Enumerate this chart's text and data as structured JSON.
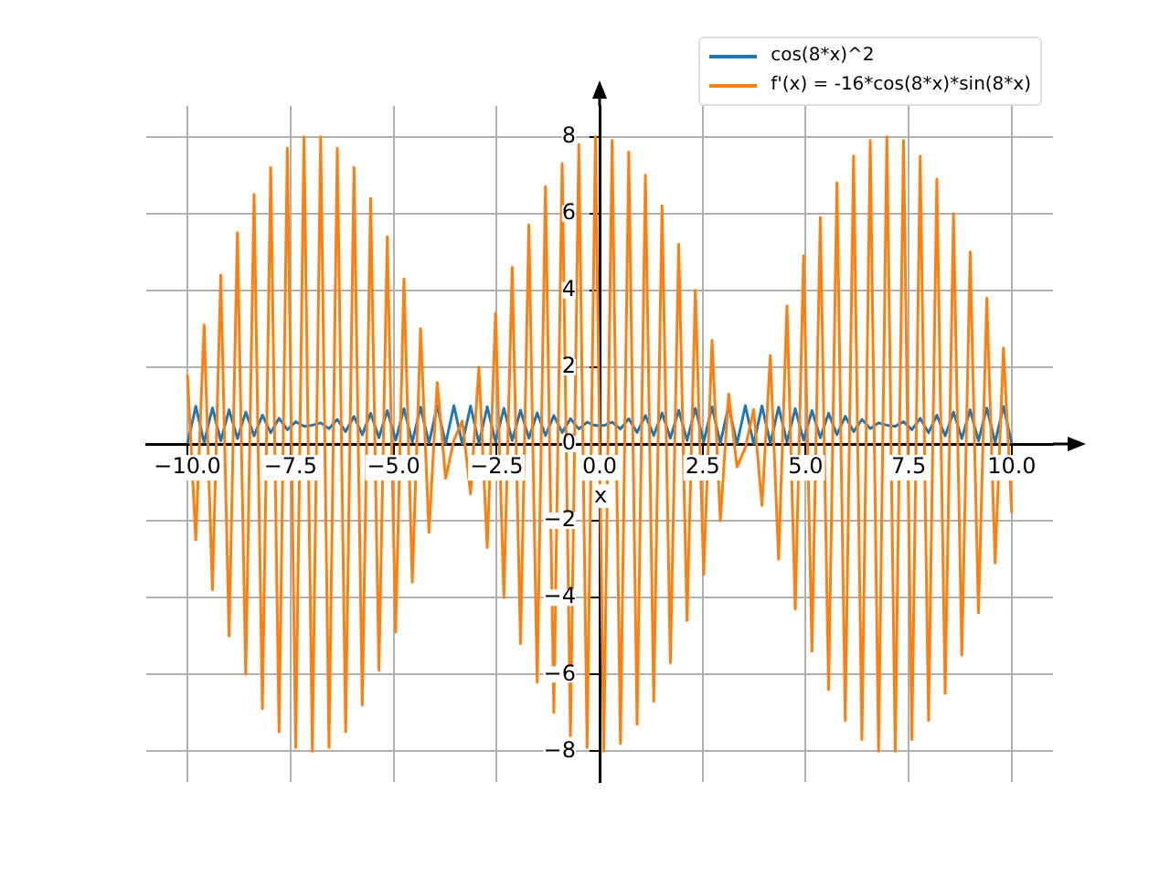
{
  "chart_data": {
    "type": "line",
    "xlabel": "x",
    "x": [
      -10,
      -9.798,
      -9.596,
      -9.394,
      -9.192,
      -8.99,
      -8.788,
      -8.586,
      -8.384,
      -8.182,
      -7.98,
      -7.778,
      -7.576,
      -7.374,
      -7.172,
      -6.97,
      -6.768,
      -6.566,
      -6.364,
      -6.162,
      -5.96,
      -5.758,
      -5.556,
      -5.354,
      -5.152,
      -4.949,
      -4.747,
      -4.545,
      -4.343,
      -4.141,
      -3.939,
      -3.737,
      -3.535,
      -3.333,
      -3.131,
      -2.929,
      -2.727,
      -2.525,
      -2.323,
      -2.121,
      -1.919,
      -1.717,
      -1.515,
      -1.313,
      -1.111,
      -0.909,
      -0.707,
      -0.505,
      -0.303,
      -0.101,
      0.101,
      0.303,
      0.505,
      0.707,
      0.909,
      1.111,
      1.313,
      1.515,
      1.717,
      1.919,
      2.121,
      2.323,
      2.525,
      2.727,
      2.929,
      3.131,
      3.333,
      3.535,
      3.737,
      3.939,
      4.141,
      4.343,
      4.545,
      4.747,
      4.949,
      5.152,
      5.354,
      5.556,
      5.758,
      5.96,
      6.162,
      6.364,
      6.566,
      6.768,
      6.97,
      7.172,
      7.374,
      7.576,
      7.778,
      7.98,
      8.182,
      8.384,
      8.586,
      8.788,
      8.99,
      9.192,
      9.394,
      9.596,
      9.798,
      10
    ],
    "series": [
      {
        "name": "cos(8*x)^2",
        "color": "#1f77b4",
        "values": [
          0.01,
          0.98,
          0.04,
          0.94,
          0.08,
          0.89,
          0.14,
          0.83,
          0.21,
          0.75,
          0.29,
          0.67,
          0.37,
          0.58,
          0.46,
          0.49,
          0.55,
          0.4,
          0.64,
          0.32,
          0.72,
          0.24,
          0.8,
          0.16,
          0.87,
          0.1,
          0.92,
          0.05,
          0.96,
          0.02,
          0.99,
          0,
          1,
          0,
          0.99,
          0.02,
          0.97,
          0.05,
          0.93,
          0.09,
          0.88,
          0.15,
          0.81,
          0.22,
          0.74,
          0.3,
          0.66,
          0.39,
          0.57,
          0.48,
          0.48,
          0.57,
          0.39,
          0.66,
          0.3,
          0.74,
          0.22,
          0.81,
          0.15,
          0.88,
          0.09,
          0.93,
          0.05,
          0.97,
          0.02,
          0.99,
          0,
          1,
          0,
          0.99,
          0.02,
          0.96,
          0.05,
          0.92,
          0.1,
          0.87,
          0.16,
          0.8,
          0.24,
          0.72,
          0.32,
          0.64,
          0.4,
          0.55,
          0.49,
          0.46,
          0.58,
          0.37,
          0.67,
          0.29,
          0.75,
          0.21,
          0.83,
          0.14,
          0.89,
          0.08,
          0.94,
          0.04,
          0.98,
          0.01
        ]
      },
      {
        "name": "f'(x) = -16*cos(8*x)*sin(8*x)",
        "color": "#ff7f0e",
        "values": [
          1.8,
          -2.5,
          3.1,
          -3.8,
          4.4,
          -5,
          5.5,
          -6,
          6.5,
          -6.9,
          7.2,
          -7.5,
          7.7,
          -7.9,
          8,
          -8,
          8,
          -7.9,
          7.7,
          -7.5,
          7.2,
          -6.8,
          6.4,
          -5.9,
          5.4,
          -4.9,
          4.3,
          -3.6,
          3,
          -2.3,
          1.6,
          -0.9,
          0.1,
          0.6,
          -1.3,
          2,
          -2.7,
          3.4,
          -4,
          4.6,
          -5.2,
          5.7,
          -6.2,
          6.7,
          -7,
          7.3,
          -7.6,
          7.8,
          -7.9,
          8,
          -8,
          7.9,
          -7.8,
          7.6,
          -7.3,
          7,
          -6.7,
          6.2,
          -5.7,
          5.2,
          -4.6,
          4,
          -3.4,
          2.7,
          -2,
          1.3,
          -0.6,
          -0.1,
          0.9,
          -1.6,
          2.3,
          -3,
          3.6,
          -4.3,
          4.9,
          -5.4,
          5.9,
          -6.4,
          6.8,
          -7.2,
          7.5,
          -7.7,
          7.9,
          -8,
          8,
          -8,
          7.9,
          -7.7,
          7.5,
          -7.2,
          6.9,
          -6.5,
          6,
          -5.5,
          5,
          -4.4,
          3.8,
          -3.1,
          2.5,
          -1.8
        ]
      }
    ],
    "xlim": [
      -11,
      11
    ],
    "ylim": [
      -8.8,
      8.8
    ],
    "xticks": [
      {
        "value": -10,
        "label": "−10.0"
      },
      {
        "value": -7.5,
        "label": "−7.5"
      },
      {
        "value": -5,
        "label": "−5.0"
      },
      {
        "value": -2.5,
        "label": "−2.5"
      },
      {
        "value": 0,
        "label": "0.0"
      },
      {
        "value": 2.5,
        "label": "2.5"
      },
      {
        "value": 5,
        "label": "5.0"
      },
      {
        "value": 7.5,
        "label": "7.5"
      },
      {
        "value": 10,
        "label": "10.0"
      }
    ],
    "yticks": [
      {
        "value": -8,
        "label": "−8"
      },
      {
        "value": -6,
        "label": "−6"
      },
      {
        "value": -4,
        "label": "−4"
      },
      {
        "value": -2,
        "label": "−2"
      },
      0,
      2,
      4,
      6,
      8
    ],
    "grid": true,
    "legend": "top right",
    "marker": "none",
    "line_style": "solid"
  }
}
